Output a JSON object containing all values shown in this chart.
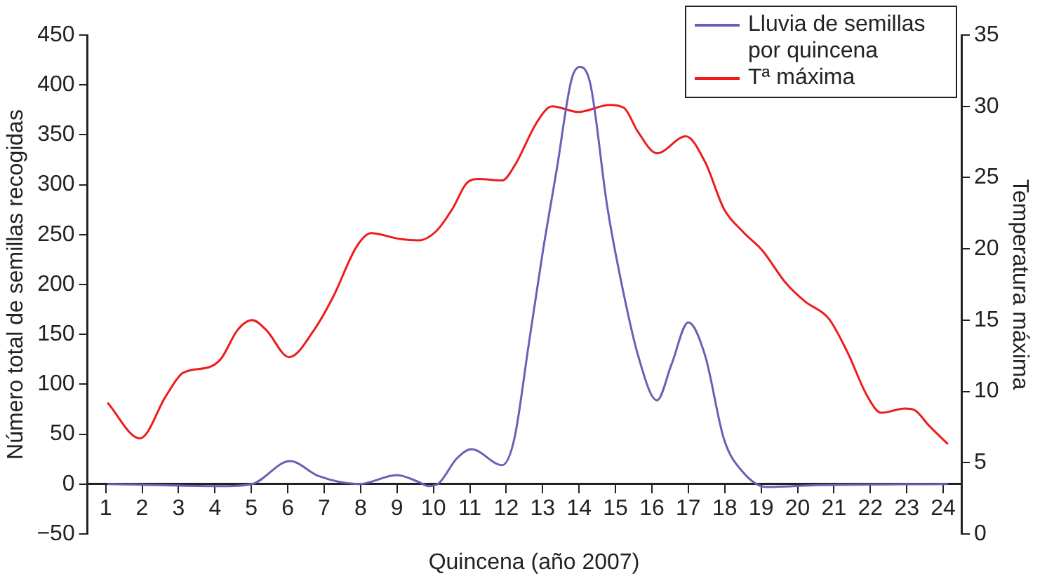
{
  "chart_data": {
    "type": "line",
    "xlabel": "Quincena (año 2007)",
    "ylabel": "Número total de semillas recogidas",
    "y2label": "Temperatura máxima",
    "xlim": [
      0.5,
      24.5
    ],
    "xticks": [
      1,
      2,
      3,
      4,
      5,
      6,
      7,
      8,
      9,
      10,
      11,
      12,
      13,
      14,
      15,
      16,
      17,
      18,
      19,
      20,
      21,
      22,
      23,
      24
    ],
    "ylim": [
      -50,
      450
    ],
    "yticks": [
      {
        "value": -50,
        "label": "−50"
      },
      0,
      50,
      100,
      150,
      200,
      250,
      300,
      350,
      400,
      450
    ],
    "y2lim": [
      0,
      35
    ],
    "y2ticks": [
      0,
      5,
      10,
      15,
      20,
      25,
      30,
      35
    ],
    "legend": "top right",
    "marker": "none",
    "series": [
      {
        "name": "Lluvia de semillas por quincena",
        "color": "#6a5fb5",
        "x": [
          1.05,
          4.3,
          5.02,
          6.06,
          6.85,
          7.96,
          9.0,
          9.6,
          9.86,
          10.12,
          10.65,
          11.04,
          11.89,
          12.22,
          12.61,
          13.0,
          13.39,
          13.79,
          14.02,
          14.31,
          14.77,
          15.1,
          15.62,
          16.14,
          16.54,
          17.0,
          17.46,
          17.98,
          18.5,
          19.16,
          20.6,
          24.13
        ],
        "values": [
          0,
          -2,
          0,
          23,
          8,
          0,
          9,
          2,
          -2,
          0,
          26,
          35,
          19,
          45,
          138,
          232,
          316,
          405,
          418,
          401,
          279,
          213,
          129,
          84,
          120,
          162,
          129,
          45,
          12,
          -3,
          -1,
          0
        ]
      },
      {
        "name": "Tª máxima",
        "color": "#ee1c1c",
        "axis": "y2",
        "x": [
          1.05,
          1.94,
          2.66,
          3.12,
          3.84,
          4.17,
          4.62,
          5.02,
          5.41,
          6.04,
          6.72,
          7.24,
          7.9,
          8.29,
          9.07,
          9.6,
          10.06,
          10.52,
          10.91,
          11.24,
          11.89,
          12.22,
          12.87,
          13.26,
          13.98,
          14.84,
          15.23,
          15.62,
          16.14,
          16.93,
          17.46,
          17.98,
          18.5,
          19.03,
          19.68,
          20.21,
          20.86,
          21.38,
          21.91,
          22.3,
          22.95,
          23.21,
          23.61,
          24.13
        ],
        "values": [
          9.2,
          6.7,
          9.7,
          11.3,
          11.7,
          12.3,
          14.3,
          15.0,
          14.3,
          12.4,
          14.3,
          16.6,
          20.2,
          21.1,
          20.7,
          20.6,
          21.2,
          22.8,
          24.6,
          24.9,
          24.8,
          25.8,
          29.0,
          30.0,
          29.6,
          30.1,
          29.9,
          28.2,
          26.7,
          27.9,
          26.1,
          22.8,
          21.2,
          19.9,
          17.6,
          16.3,
          15.1,
          12.7,
          9.7,
          8.5,
          8.8,
          8.7,
          7.6,
          6.3
        ]
      }
    ]
  }
}
